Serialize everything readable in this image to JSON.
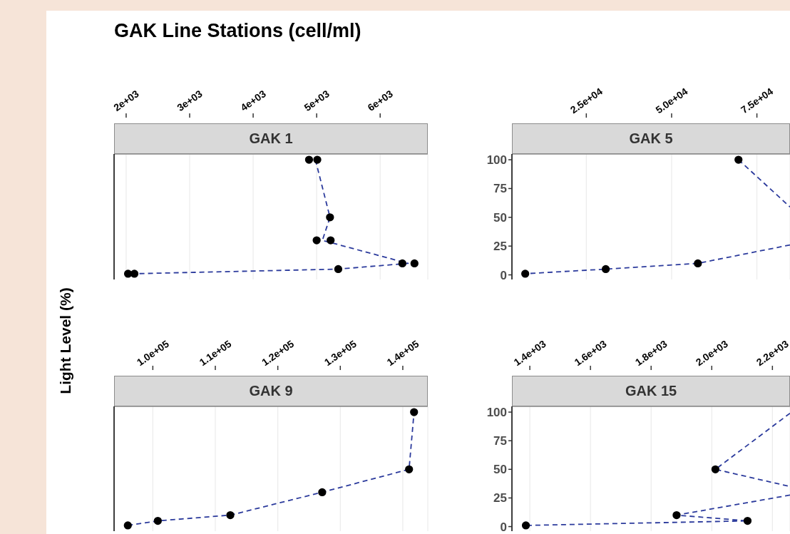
{
  "chart_data": [
    {
      "type": "scatter",
      "title": "GAK 1",
      "annotations": [
        "GAK Line Stations (cell/ml)"
      ],
      "xlim": [
        1810,
        6750
      ],
      "xticks": [
        {
          "value": 2000,
          "label": "2e+03"
        },
        {
          "value": 3000,
          "label": "3e+03"
        },
        {
          "value": 4000,
          "label": "4e+03"
        },
        {
          "value": 5000,
          "label": "5e+03"
        },
        {
          "value": 6000,
          "label": "6e+03"
        }
      ],
      "ylim": [
        -4,
        105
      ],
      "yticks": [
        0,
        25,
        50,
        75,
        100
      ],
      "grid": "x",
      "tick_labels": "x",
      "series": [
        {
          "type": "scatter",
          "color": "#000000",
          "marker": "circle",
          "x": [
            4880,
            5010,
            5210,
            5000,
            5220,
            6350,
            6540,
            5340,
            2030,
            2130
          ],
          "values": [
            100,
            100,
            50,
            30,
            30,
            10,
            10,
            5,
            1,
            1
          ]
        },
        {
          "type": "line",
          "color": "#2b3a9c",
          "marker": "none",
          "line_style": "dashed",
          "x": [
            4980,
            5210,
            5090,
            6440,
            5340,
            2130
          ],
          "values": [
            100,
            50,
            30,
            10,
            5,
            1
          ]
        }
      ]
    },
    {
      "type": "scatter",
      "title": "GAK 5",
      "xlim": [
        3200,
        84700
      ],
      "xticks": [
        {
          "value": 25000,
          "label": "2.5e+04"
        },
        {
          "value": 50000,
          "label": "5.0e+04"
        },
        {
          "value": 75000,
          "label": "7.5e+04"
        }
      ],
      "ylim": [
        -4,
        105
      ],
      "yticks": [
        0,
        25,
        50,
        75,
        100
      ],
      "grid": "x",
      "series": [
        {
          "type": "scatter",
          "color": "#000000",
          "marker": "circle",
          "x": [
            7100,
            30700,
            57700,
            69600
          ],
          "values": [
            1,
            5,
            10,
            100
          ]
        },
        {
          "type": "line",
          "color": "#2b3a9c",
          "marker": "none",
          "line_style": "dashed",
          "x": [
            69600,
            84700
          ],
          "values": [
            100,
            59
          ]
        },
        {
          "type": "line",
          "color": "#2b3a9c",
          "marker": "none",
          "line_style": "dashed",
          "x": [
            84700,
            57700,
            30700,
            7100
          ],
          "values": [
            26,
            10,
            5,
            1
          ]
        }
      ]
    },
    {
      "type": "scatter",
      "title": "GAK 9",
      "ylabel": "Light Level (%)",
      "xlim": [
        93800,
        144000
      ],
      "xticks": [
        {
          "value": 100000,
          "label": "1.0e+05"
        },
        {
          "value": 110000,
          "label": "1.1e+05"
        },
        {
          "value": 120000,
          "label": "1.2e+05"
        },
        {
          "value": 130000,
          "label": "1.3e+05"
        },
        {
          "value": 140000,
          "label": "1.4e+05"
        }
      ],
      "ylim": [
        -4,
        105
      ],
      "yticks": [
        0,
        25,
        50,
        75,
        100
      ],
      "grid": "x",
      "tick_labels": "x",
      "series": [
        {
          "type": "scatter",
          "color": "#000000",
          "marker": "circle",
          "x": [
            96000,
            100800,
            112400,
            127100,
            141000,
            141800
          ],
          "values": [
            1,
            5,
            10,
            30,
            50,
            100
          ]
        },
        {
          "type": "line",
          "color": "#2b3a9c",
          "marker": "none",
          "line_style": "dashed",
          "x": [
            96000,
            100800,
            112400,
            127100,
            141000,
            141800
          ],
          "values": [
            1,
            5,
            10,
            30,
            50,
            100
          ]
        }
      ]
    },
    {
      "type": "scatter",
      "title": "GAK 15",
      "xlim": [
        1341,
        2258
      ],
      "xticks": [
        {
          "value": 1400,
          "label": "1.4e+03"
        },
        {
          "value": 1600,
          "label": "1.6e+03"
        },
        {
          "value": 1800,
          "label": "1.8e+03"
        },
        {
          "value": 2000,
          "label": "2.0e+03"
        },
        {
          "value": 2200,
          "label": "2.2e+03"
        }
      ],
      "ylim": [
        -4,
        105
      ],
      "yticks": [
        0,
        25,
        50,
        75,
        100
      ],
      "grid": "x",
      "series": [
        {
          "type": "scatter",
          "color": "#000000",
          "marker": "circle",
          "x": [
            1387,
            1884,
            2012,
            2118
          ],
          "values": [
            1,
            10,
            50,
            5
          ]
        },
        {
          "type": "line",
          "color": "#2b3a9c",
          "marker": "none",
          "line_style": "dashed",
          "x": [
            2258,
            2012,
            2258
          ],
          "values": [
            99,
            50,
            35
          ]
        },
        {
          "type": "line",
          "color": "#2b3a9c",
          "marker": "none",
          "line_style": "dashed",
          "x": [
            2258,
            1884,
            2118,
            1387
          ],
          "values": [
            27.5,
            10,
            5,
            1
          ]
        }
      ]
    }
  ]
}
